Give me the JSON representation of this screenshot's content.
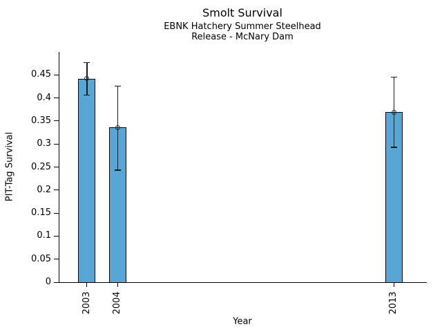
{
  "chart_data": {
    "type": "bar",
    "title": "Smolt Survival",
    "subtitle_line1": "EBNK Hatchery Summer Steelhead",
    "subtitle_line2": "Release - McNary Dam",
    "xlabel": "Year",
    "ylabel": "PIT-Tag Survival",
    "categories": [
      "2003",
      "2004",
      "2013"
    ],
    "x": [
      2003,
      2004,
      2013
    ],
    "values": [
      0.442,
      0.336,
      0.369
    ],
    "error_low": [
      0.406,
      0.243,
      0.293
    ],
    "error_high": [
      0.477,
      0.426,
      0.445
    ],
    "yticks": [
      0,
      0.05,
      0.1,
      0.15,
      0.2,
      0.25,
      0.3,
      0.35,
      0.4,
      0.45
    ],
    "ytick_labels": [
      "0",
      "0.05",
      "0.1",
      "0.15",
      "0.2",
      "0.25",
      "0.3",
      "0.35",
      "0.4",
      "0.45"
    ],
    "ylim": [
      0,
      0.5
    ],
    "xlim": [
      2002.09,
      2014.07
    ],
    "grid": false,
    "legend": "none",
    "marker": "open-circle",
    "bar_color": "#58A6D3",
    "bar_edge_color": "#000000",
    "error_color": "#1a1a1a"
  }
}
